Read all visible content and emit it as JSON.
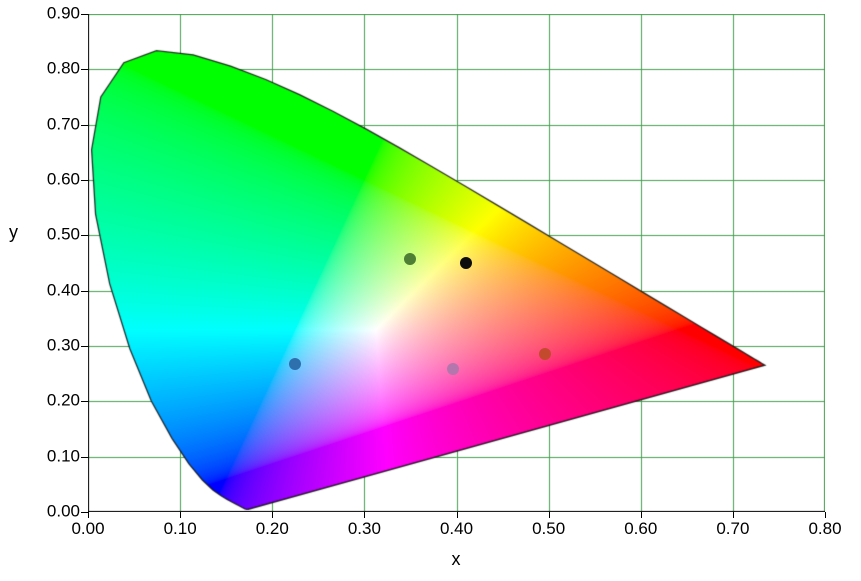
{
  "figure": {
    "background_color": "#ffffff",
    "description": "CIE 1931 xy chromaticity diagram with five plotted chromaticity points"
  },
  "chart_data": {
    "type": "scatter",
    "title": "",
    "xlabel": "x",
    "ylabel": "y",
    "xlim": [
      0.0,
      0.8
    ],
    "ylim": [
      0.0,
      0.9
    ],
    "x_tick_labels": [
      "0.00",
      "0.10",
      "0.20",
      "0.30",
      "0.40",
      "0.50",
      "0.60",
      "0.70",
      "0.80"
    ],
    "y_tick_labels": [
      "0.00",
      "0.10",
      "0.20",
      "0.30",
      "0.40",
      "0.50",
      "0.60",
      "0.70",
      "0.80",
      "0.90"
    ],
    "grid": true,
    "grid_color": "#44a14e",
    "axis_color": "#000000",
    "legend_position": "none",
    "marker_size_px": 12,
    "background_fill": "CIE 1931 spectral locus horseshoe filled with per-pixel chromaticity colors",
    "points": [
      {
        "x": 0.35,
        "y": 0.458,
        "color": "#4e7f35",
        "label": "green"
      },
      {
        "x": 0.41,
        "y": 0.45,
        "color": "#0d0d0d",
        "label": "black"
      },
      {
        "x": 0.225,
        "y": 0.267,
        "color": "#2e6fae",
        "label": "blue"
      },
      {
        "x": 0.396,
        "y": 0.258,
        "color": "#b377ad",
        "label": "magenta"
      },
      {
        "x": 0.496,
        "y": 0.285,
        "color": "#c44a2e",
        "label": "red"
      }
    ],
    "spectral_locus_xy": [
      [
        0.1741,
        0.005
      ],
      [
        0.174,
        0.005
      ],
      [
        0.1738,
        0.0049
      ],
      [
        0.1736,
        0.0049
      ],
      [
        0.1733,
        0.0048
      ],
      [
        0.173,
        0.0048
      ],
      [
        0.1726,
        0.0048
      ],
      [
        0.1721,
        0.0048
      ],
      [
        0.1714,
        0.0051
      ],
      [
        0.1703,
        0.0058
      ],
      [
        0.1689,
        0.0069
      ],
      [
        0.1669,
        0.0086
      ],
      [
        0.1644,
        0.0109
      ],
      [
        0.1611,
        0.0138
      ],
      [
        0.1566,
        0.0177
      ],
      [
        0.151,
        0.0227
      ],
      [
        0.144,
        0.0297
      ],
      [
        0.1355,
        0.0399
      ],
      [
        0.1241,
        0.0578
      ],
      [
        0.1096,
        0.0868
      ],
      [
        0.0913,
        0.1327
      ],
      [
        0.0687,
        0.2007
      ],
      [
        0.0454,
        0.295
      ],
      [
        0.0235,
        0.4127
      ],
      [
        0.0082,
        0.5384
      ],
      [
        0.0039,
        0.6548
      ],
      [
        0.0139,
        0.7502
      ],
      [
        0.0389,
        0.812
      ],
      [
        0.0743,
        0.8338
      ],
      [
        0.1142,
        0.8262
      ],
      [
        0.1547,
        0.8059
      ],
      [
        0.1929,
        0.7816
      ],
      [
        0.2296,
        0.7543
      ],
      [
        0.2658,
        0.7243
      ],
      [
        0.3016,
        0.6923
      ],
      [
        0.3373,
        0.6589
      ],
      [
        0.3731,
        0.6245
      ],
      [
        0.4087,
        0.5896
      ],
      [
        0.4441,
        0.5547
      ],
      [
        0.4788,
        0.5202
      ],
      [
        0.5125,
        0.4866
      ],
      [
        0.5448,
        0.4544
      ],
      [
        0.5752,
        0.4242
      ],
      [
        0.6029,
        0.3965
      ],
      [
        0.627,
        0.3725
      ],
      [
        0.6482,
        0.3514
      ],
      [
        0.6658,
        0.334
      ],
      [
        0.6801,
        0.3197
      ],
      [
        0.6915,
        0.3083
      ],
      [
        0.7006,
        0.2993
      ],
      [
        0.7079,
        0.292
      ],
      [
        0.714,
        0.2859
      ],
      [
        0.719,
        0.2809
      ],
      [
        0.723,
        0.277
      ],
      [
        0.726,
        0.274
      ],
      [
        0.7283,
        0.2717
      ],
      [
        0.73,
        0.27
      ],
      [
        0.7311,
        0.2689
      ],
      [
        0.732,
        0.268
      ],
      [
        0.7327,
        0.2673
      ],
      [
        0.7334,
        0.2666
      ],
      [
        0.734,
        0.266
      ],
      [
        0.7344,
        0.2656
      ],
      [
        0.7346,
        0.2654
      ],
      [
        0.7347,
        0.2653
      ]
    ]
  }
}
